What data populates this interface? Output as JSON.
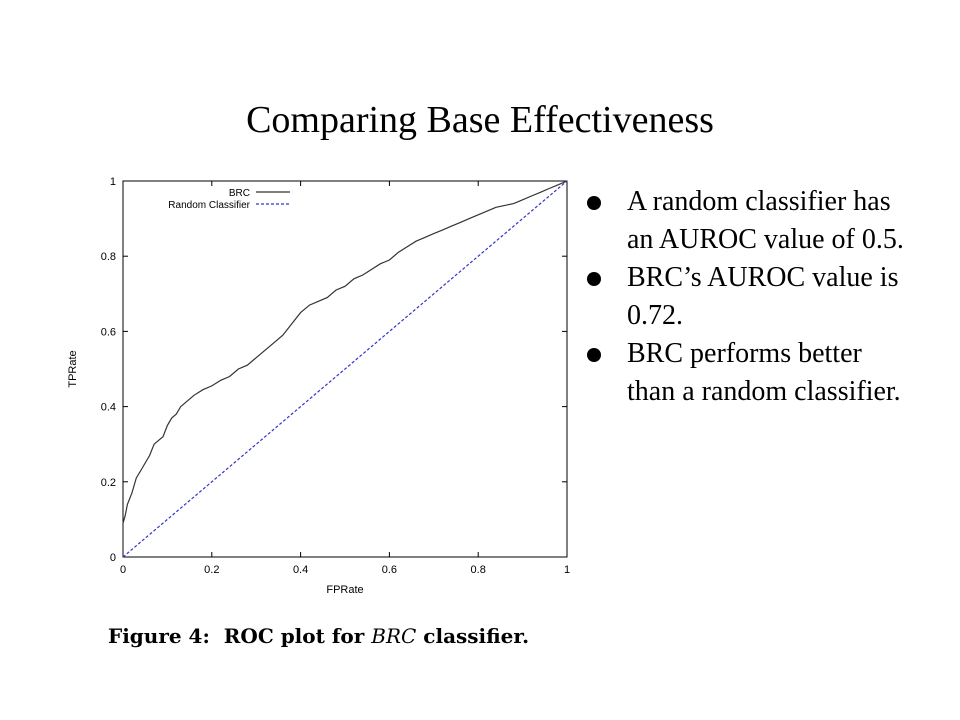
{
  "slide": {
    "title": "Comparing Base Effectiveness",
    "bullets": [
      "A random classifier has an AUROC value of 0.5.",
      "BRC’s AUROC value is 0.72.",
      "BRC performs better than a random classifier."
    ]
  },
  "caption": {
    "prefix": "Figure 4:  ROC plot for ",
    "classifier": "BRC",
    "suffix": " classifier."
  },
  "chart_data": {
    "type": "line",
    "xlabel": "FPRate",
    "ylabel": "TPRate",
    "xlim": [
      0,
      1
    ],
    "ylim": [
      0,
      1
    ],
    "xticks": [
      "0",
      "0.2",
      "0.4",
      "0.6",
      "0.8",
      "1"
    ],
    "yticks": [
      "0",
      "0.2",
      "0.4",
      "0.6",
      "0.8",
      "1"
    ],
    "grid": false,
    "legend_position": "top-left",
    "series": [
      {
        "name": "BRC",
        "style": "solid",
        "color": "#333333",
        "x": [
          0,
          0,
          0.005,
          0.01,
          0.02,
          0.03,
          0.04,
          0.05,
          0.06,
          0.07,
          0.08,
          0.09,
          0.1,
          0.11,
          0.12,
          0.13,
          0.14,
          0.15,
          0.16,
          0.18,
          0.2,
          0.22,
          0.24,
          0.26,
          0.28,
          0.3,
          0.32,
          0.34,
          0.36,
          0.38,
          0.4,
          0.42,
          0.44,
          0.46,
          0.48,
          0.5,
          0.52,
          0.54,
          0.56,
          0.58,
          0.6,
          0.62,
          0.64,
          0.66,
          0.68,
          0.7,
          0.72,
          0.74,
          0.76,
          0.78,
          0.8,
          0.82,
          0.84,
          0.86,
          0.88,
          0.9,
          0.92,
          0.94,
          0.96,
          0.98,
          1
        ],
        "y": [
          0,
          0.09,
          0.11,
          0.14,
          0.17,
          0.21,
          0.23,
          0.25,
          0.27,
          0.3,
          0.31,
          0.32,
          0.35,
          0.37,
          0.38,
          0.4,
          0.41,
          0.42,
          0.43,
          0.445,
          0.455,
          0.47,
          0.48,
          0.5,
          0.51,
          0.53,
          0.55,
          0.57,
          0.59,
          0.62,
          0.65,
          0.67,
          0.68,
          0.69,
          0.71,
          0.72,
          0.74,
          0.75,
          0.765,
          0.78,
          0.79,
          0.81,
          0.825,
          0.84,
          0.85,
          0.86,
          0.87,
          0.88,
          0.89,
          0.9,
          0.91,
          0.92,
          0.93,
          0.935,
          0.94,
          0.95,
          0.96,
          0.97,
          0.98,
          0.99,
          1
        ]
      },
      {
        "name": "Random Classifier",
        "style": "dashed",
        "color": "#3333cc",
        "x": [
          0,
          1
        ],
        "y": [
          0,
          1
        ]
      }
    ]
  }
}
